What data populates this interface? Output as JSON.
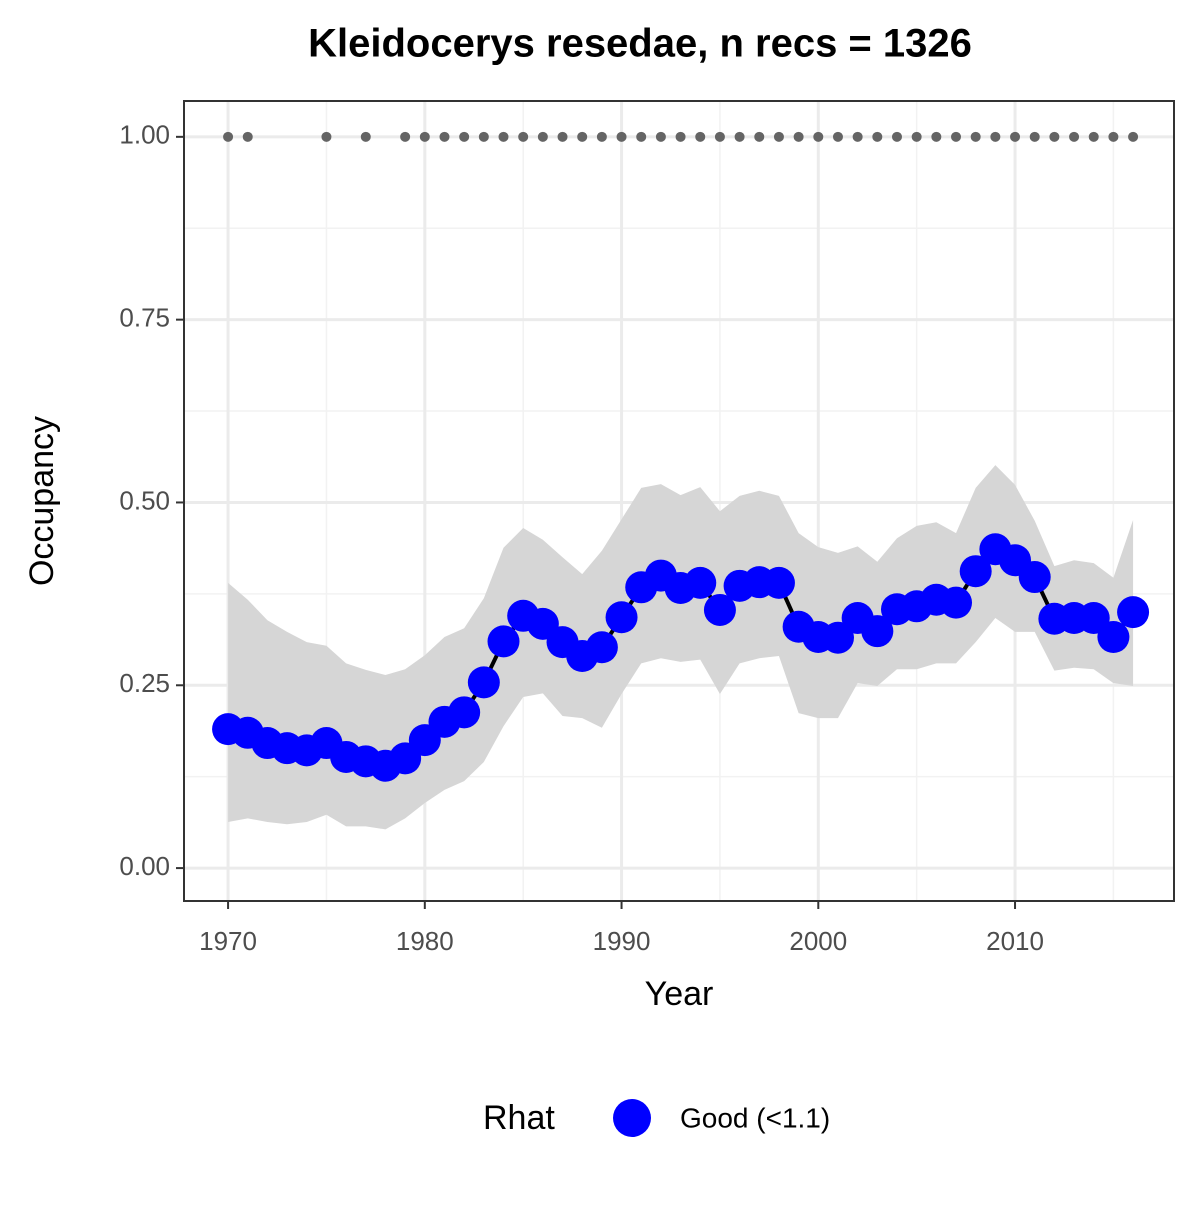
{
  "chart_data": {
    "type": "line",
    "title": "Kleidocerys resedae, n recs = 1326",
    "x_label": "Year",
    "y_label": "Occupancy",
    "legend_title": "Rhat",
    "x": [
      1970,
      1971,
      1972,
      1973,
      1974,
      1975,
      1976,
      1977,
      1978,
      1979,
      1980,
      1981,
      1982,
      1983,
      1984,
      1985,
      1986,
      1987,
      1988,
      1989,
      1990,
      1991,
      1992,
      1993,
      1994,
      1995,
      1996,
      1997,
      1998,
      1999,
      2000,
      2001,
      2002,
      2003,
      2004,
      2005,
      2006,
      2007,
      2008,
      2009,
      2010,
      2011,
      2012,
      2013,
      2014,
      2015,
      2016
    ],
    "series": [
      {
        "name": "Good (<1.1)",
        "color": "#0000ff",
        "line_color": "#000000",
        "values": [
          0.19,
          0.185,
          0.171,
          0.164,
          0.161,
          0.171,
          0.152,
          0.146,
          0.14,
          0.15,
          0.175,
          0.2,
          0.213,
          0.254,
          0.31,
          0.345,
          0.334,
          0.309,
          0.29,
          0.302,
          0.343,
          0.384,
          0.4,
          0.383,
          0.39,
          0.353,
          0.386,
          0.391,
          0.39,
          0.33,
          0.316,
          0.315,
          0.342,
          0.324,
          0.354,
          0.358,
          0.367,
          0.363,
          0.406,
          0.436,
          0.421,
          0.398,
          0.341,
          0.342,
          0.342,
          0.316,
          0.35
        ]
      }
    ],
    "ribbon": {
      "color": "#d6d6d6",
      "upper": [
        0.39,
        0.367,
        0.339,
        0.323,
        0.309,
        0.304,
        0.28,
        0.271,
        0.264,
        0.272,
        0.291,
        0.316,
        0.328,
        0.369,
        0.438,
        0.465,
        0.449,
        0.425,
        0.402,
        0.434,
        0.477,
        0.52,
        0.525,
        0.51,
        0.521,
        0.488,
        0.509,
        0.516,
        0.509,
        0.458,
        0.439,
        0.431,
        0.44,
        0.419,
        0.451,
        0.468,
        0.473,
        0.458,
        0.52,
        0.551,
        0.524,
        0.475,
        0.413,
        0.421,
        0.417,
        0.397,
        0.476
      ],
      "lower": [
        0.063,
        0.068,
        0.063,
        0.06,
        0.063,
        0.073,
        0.057,
        0.057,
        0.053,
        0.068,
        0.089,
        0.107,
        0.119,
        0.145,
        0.194,
        0.234,
        0.239,
        0.208,
        0.205,
        0.192,
        0.238,
        0.28,
        0.287,
        0.282,
        0.285,
        0.238,
        0.28,
        0.287,
        0.29,
        0.212,
        0.205,
        0.205,
        0.253,
        0.249,
        0.272,
        0.272,
        0.28,
        0.28,
        0.309,
        0.342,
        0.323,
        0.323,
        0.27,
        0.274,
        0.272,
        0.253,
        0.249
      ]
    },
    "records": {
      "color": "#646464",
      "x": [
        1970,
        1971,
        1975,
        1977,
        1979,
        1980,
        1981,
        1982,
        1983,
        1984,
        1985,
        1986,
        1987,
        1988,
        1989,
        1990,
        1991,
        1992,
        1993,
        1994,
        1995,
        1996,
        1997,
        1998,
        1999,
        2000,
        2001,
        2002,
        2003,
        2004,
        2005,
        2006,
        2007,
        2008,
        2009,
        2010,
        2011,
        2012,
        2013,
        2014,
        2015,
        2016
      ],
      "values": [
        1,
        1,
        1,
        1,
        1,
        1,
        1,
        1,
        1,
        1,
        1,
        1,
        1,
        1,
        1,
        1,
        1,
        1,
        1,
        1,
        1,
        1,
        1,
        1,
        1,
        1,
        1,
        1,
        1,
        1,
        1,
        1,
        1,
        1,
        1,
        1,
        1,
        1,
        1,
        1,
        1,
        1
      ]
    },
    "xlim": [
      1967.76,
      2018.08
    ],
    "ylim": [
      -0.045,
      1.049
    ],
    "xticks": [
      1970,
      1980,
      1990,
      2000,
      2010
    ],
    "yticks": [
      {
        "value": 0,
        "label": "0.00"
      },
      {
        "value": 0.25,
        "label": "0.25"
      },
      {
        "value": 0.5,
        "label": "0.50"
      },
      {
        "value": 0.75,
        "label": "0.75"
      },
      {
        "value": 1,
        "label": "1.00"
      }
    ],
    "minor_xticks": [
      1975,
      1985,
      1995,
      2005,
      2015
    ],
    "minor_yticks": [
      0.125,
      0.375,
      0.625,
      0.875
    ],
    "grid": true,
    "legend_position": "bottom"
  }
}
